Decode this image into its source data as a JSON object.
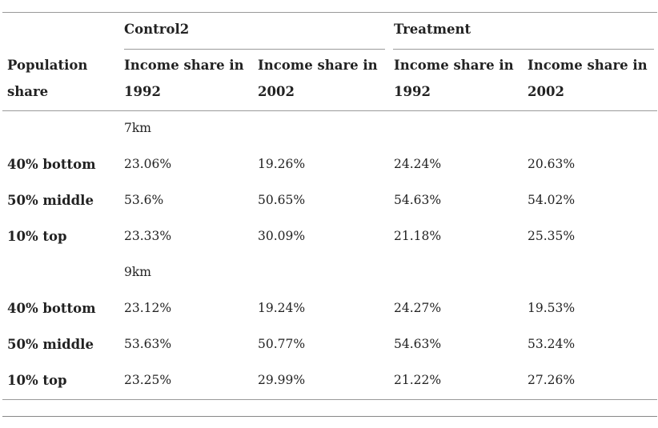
{
  "table": {
    "groups": [
      {
        "label": "Control2"
      },
      {
        "label": "Treatment"
      }
    ],
    "population_header": [
      "Population",
      "share"
    ],
    "column_headers": [
      [
        "Income share in",
        "1992"
      ],
      [
        "Income share in",
        "2002"
      ],
      [
        "Income share in",
        "1992"
      ],
      [
        "Income share in",
        "2002"
      ]
    ],
    "sections": [
      {
        "label": "7km",
        "rows": [
          {
            "label": "40% bottom",
            "values": [
              "23.06%",
              "19.26%",
              "24.24%",
              "20.63%"
            ]
          },
          {
            "label": "50% middle",
            "values": [
              "53.6%",
              "50.65%",
              "54.63%",
              "54.02%"
            ]
          },
          {
            "label": "10% top",
            "values": [
              "23.33%",
              "30.09%",
              "21.18%",
              "25.35%"
            ]
          }
        ]
      },
      {
        "label": "9km",
        "rows": [
          {
            "label": "40% bottom",
            "values": [
              "23.12%",
              "19.24%",
              "24.27%",
              "19.53%"
            ]
          },
          {
            "label": "50% middle",
            "values": [
              "53.63%",
              "50.77%",
              "54.63%",
              "53.24%"
            ]
          },
          {
            "label": "10% top",
            "values": [
              "23.25%",
              "29.99%",
              "21.22%",
              "27.26%"
            ]
          }
        ]
      }
    ]
  }
}
